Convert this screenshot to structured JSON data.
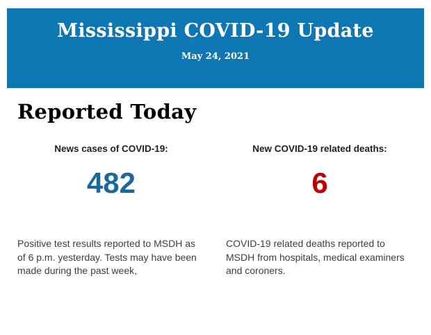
{
  "banner": {
    "title": "Mississippi COVID-19 Update",
    "date": "May 24, 2021",
    "bg_color": "#0e76b2",
    "text_color": "#ffffff"
  },
  "section": {
    "heading": "Reported Today"
  },
  "stats": [
    {
      "label": "News cases of COVID-19:",
      "value": "482",
      "value_color": "#17689d",
      "description": "Positive test results reported to MSDH as of 6 p.m. yesterday. Tests may have been made during the past week,"
    },
    {
      "label": "New COVID-19 related deaths:",
      "value": "6",
      "value_color": "#c00000",
      "description": "COVID-19 related deaths reported to MSDH from hospitals, medical examiners and coroners."
    }
  ],
  "page": {
    "bg_color": "#ffffff"
  }
}
